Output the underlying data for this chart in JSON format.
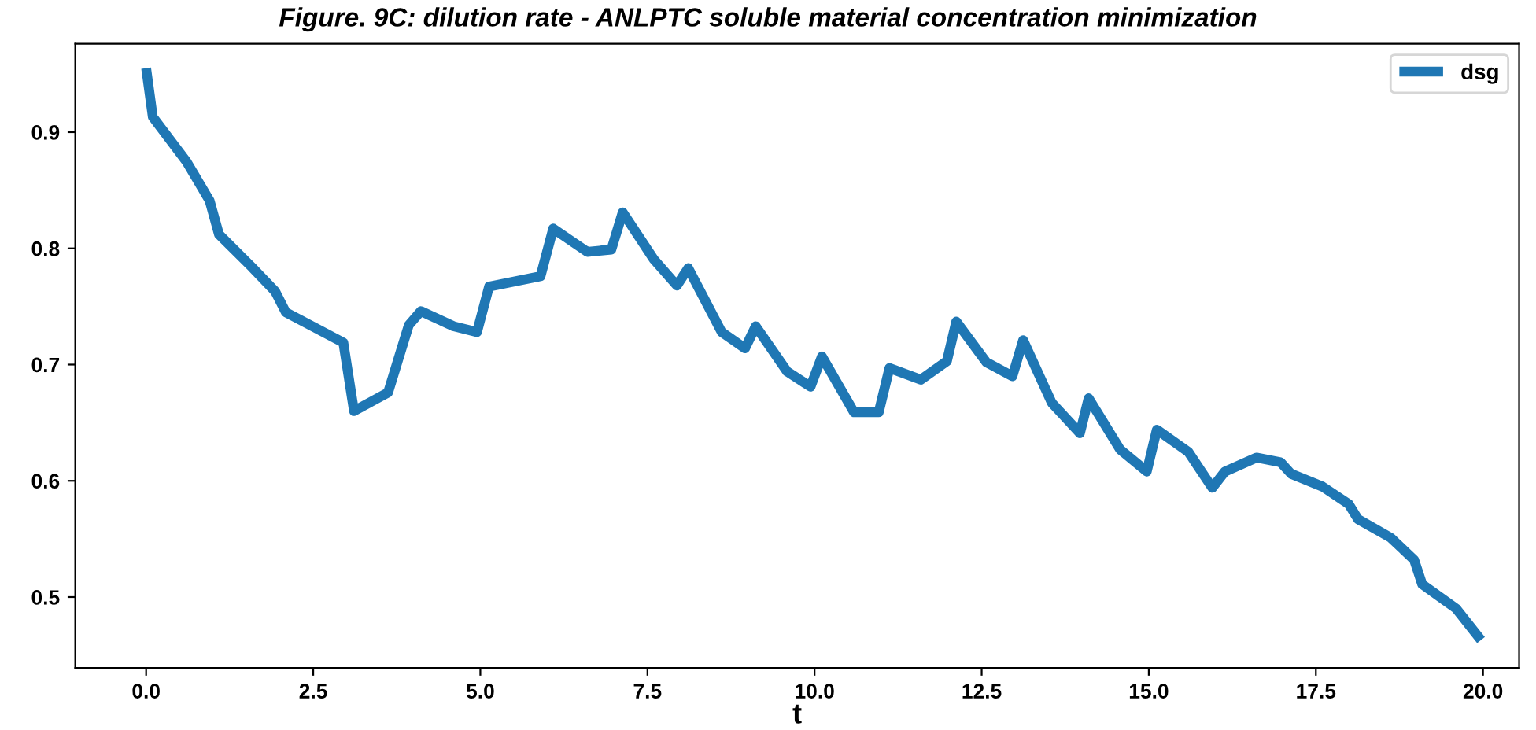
{
  "chart_data": {
    "type": "line",
    "title": "Figure. 9C: dilution rate - ANLPTC soluble material concentration minimization",
    "xlabel": "t",
    "x": [
      0,
      0.1,
      0.6,
      0.95,
      1.09,
      1.58,
      1.93,
      2.09,
      2.95,
      3.11,
      3.62,
      3.93,
      4.11,
      4.6,
      4.95,
      5.13,
      5.9,
      6.09,
      6.6,
      6.96,
      7.13,
      7.59,
      7.94,
      8.11,
      8.61,
      8.96,
      9.12,
      9.59,
      9.94,
      10.11,
      10.59,
      10.96,
      11.12,
      11.59,
      11.98,
      12.12,
      12.57,
      12.96,
      13.12,
      13.55,
      13.97,
      14.1,
      14.57,
      14.97,
      15.12,
      15.59,
      15.95,
      16.14,
      16.61,
      16.97,
      17.13,
      17.6,
      17.99,
      18.13,
      18.62,
      18.97,
      19.09,
      19.6,
      19.97
    ],
    "series": [
      {
        "name": "dsg",
        "color": "#1f77b4",
        "values": [
          0.955,
          0.913,
          0.875,
          0.841,
          0.812,
          0.784,
          0.763,
          0.745,
          0.719,
          0.66,
          0.676,
          0.734,
          0.746,
          0.733,
          0.728,
          0.767,
          0.776,
          0.817,
          0.797,
          0.799,
          0.831,
          0.791,
          0.768,
          0.783,
          0.728,
          0.714,
          0.733,
          0.694,
          0.681,
          0.707,
          0.659,
          0.659,
          0.697,
          0.687,
          0.703,
          0.737,
          0.702,
          0.69,
          0.721,
          0.667,
          0.641,
          0.671,
          0.627,
          0.608,
          0.644,
          0.625,
          0.594,
          0.608,
          0.62,
          0.616,
          0.606,
          0.595,
          0.58,
          0.567,
          0.551,
          0.532,
          0.511,
          0.49,
          0.463
        ]
      }
    ],
    "xlim": [
      -1.06,
      20.54
    ],
    "ylim": [
      0.439,
      0.976
    ],
    "xticks": [
      {
        "value": 0,
        "label": "0.0"
      },
      2.5,
      {
        "value": 5,
        "label": "5.0"
      },
      7.5,
      {
        "value": 10,
        "label": "10.0"
      },
      12.5,
      {
        "value": 15,
        "label": "15.0"
      },
      17.5,
      {
        "value": 20,
        "label": "20.0"
      }
    ],
    "yticks": [
      0.5,
      0.6,
      0.7,
      0.8,
      0.9
    ],
    "legend": "top right",
    "grid": false,
    "line_style": "solid",
    "marker": "none"
  }
}
